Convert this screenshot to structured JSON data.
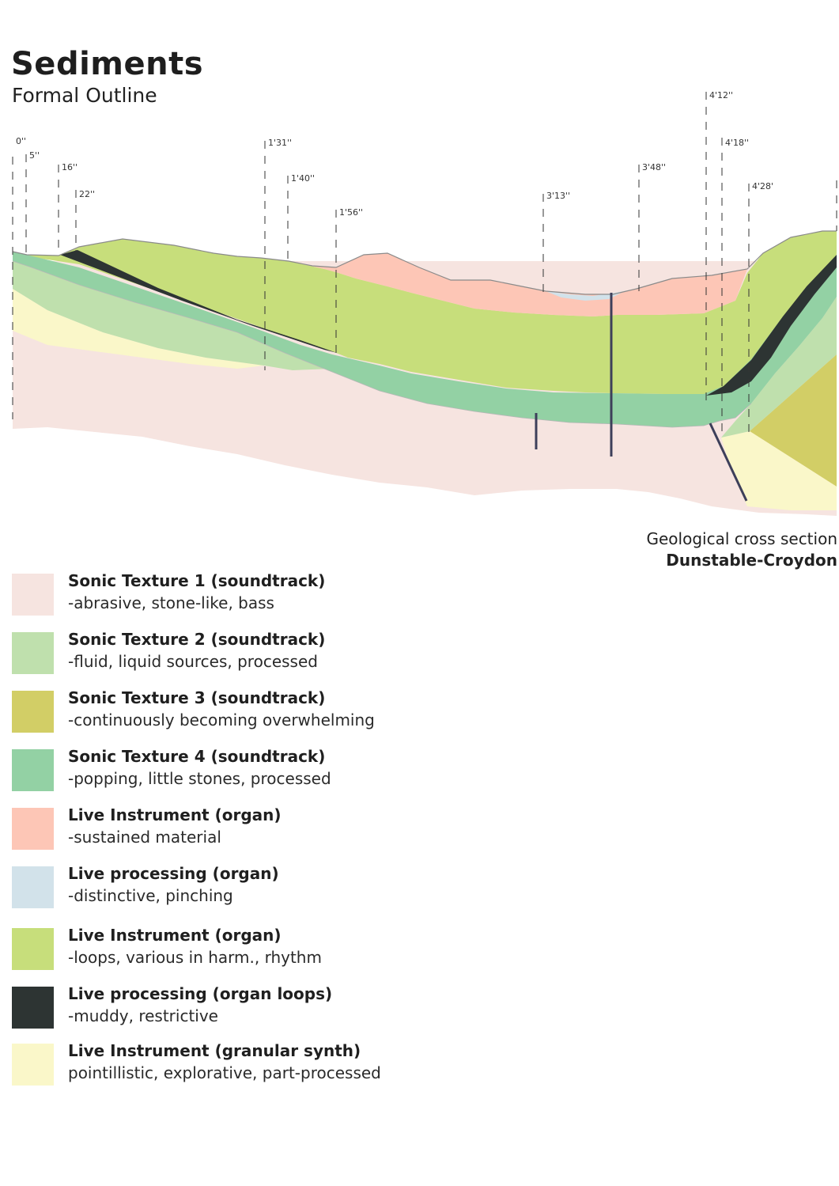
{
  "header": {
    "title": "Sediments",
    "subtitle": "Formal Outline"
  },
  "markers": [
    "0''",
    "5''",
    "16''",
    "22''",
    "1'31''",
    "1'40''",
    "1'56''",
    "3'13''",
    "3'48''",
    "4'12''",
    "4'18''",
    "4'28'"
  ],
  "caption": {
    "line1": "Geological cross section",
    "line2": "Dunstable-Croydon"
  },
  "colors": {
    "texture1": "#f6e4e0",
    "texture2": "#bfe0ad",
    "texture3": "#d2ce66",
    "texture4": "#93d1a4",
    "organ_sustained": "#fdc6b6",
    "processing_pinch": "#d2e2ea",
    "organ_loops": "#c7de7b",
    "processing_muddy": "#2d3433",
    "granular": "#faf7c9"
  },
  "legend": [
    {
      "title": "Sonic Texture 1 (soundtrack)",
      "desc": "-abrasive, stone-like, bass",
      "color": "#f6e4e0"
    },
    {
      "title": "Sonic Texture 2 (soundtrack)",
      "desc": "-fluid, liquid sources, processed",
      "color": "#bfe0ad"
    },
    {
      "title": "Sonic Texture 3 (soundtrack)",
      "desc": "-continuously becoming overwhelming",
      "color": "#d2ce66"
    },
    {
      "title": "Sonic Texture 4 (soundtrack)",
      "desc": "-popping, little stones, processed",
      "color": "#93d1a4"
    },
    {
      "title": "Live Instrument (organ)",
      "desc": "-sustained material",
      "color": "#fdc6b6"
    },
    {
      "title": "Live processing (organ)",
      "desc": "-distinctive, pinching",
      "color": "#d2e2ea"
    },
    {
      "title": "Live Instrument (organ)",
      "desc": "-loops, various in harm., rhythm",
      "color": "#c7de7b"
    },
    {
      "title": "Live processing (organ loops)",
      "desc": "-muddy, restrictive",
      "color": "#2d3433"
    },
    {
      "title": "Live Instrument (granular synth)",
      "desc": "pointillistic, explorative, part-processed",
      "color": "#faf7c9"
    }
  ]
}
